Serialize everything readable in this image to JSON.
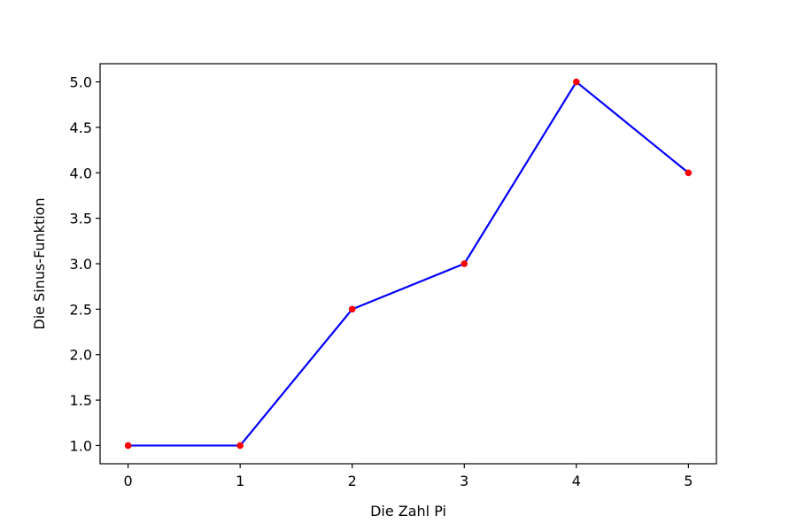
{
  "chart_data": {
    "type": "line",
    "title": "",
    "xlabel": "Die Zahl Pi",
    "ylabel": "Die Sinus-Funktion",
    "x": [
      0,
      1,
      2,
      3,
      4,
      5
    ],
    "series": [
      {
        "values": [
          1.0,
          1.0,
          2.5,
          3.0,
          5.0,
          4.0
        ],
        "line_color": "#0000ff",
        "marker_color": "#ff0000"
      }
    ],
    "xlim": [
      -0.25,
      5.25
    ],
    "ylim": [
      0.8,
      5.2
    ],
    "xticks": [
      "0",
      "1",
      "2",
      "3",
      "4",
      "5"
    ],
    "yticks": [
      "1.0",
      "1.5",
      "2.0",
      "2.5",
      "3.0",
      "3.5",
      "4.0",
      "4.5",
      "5.0"
    ],
    "grid": false,
    "legend": "none"
  }
}
